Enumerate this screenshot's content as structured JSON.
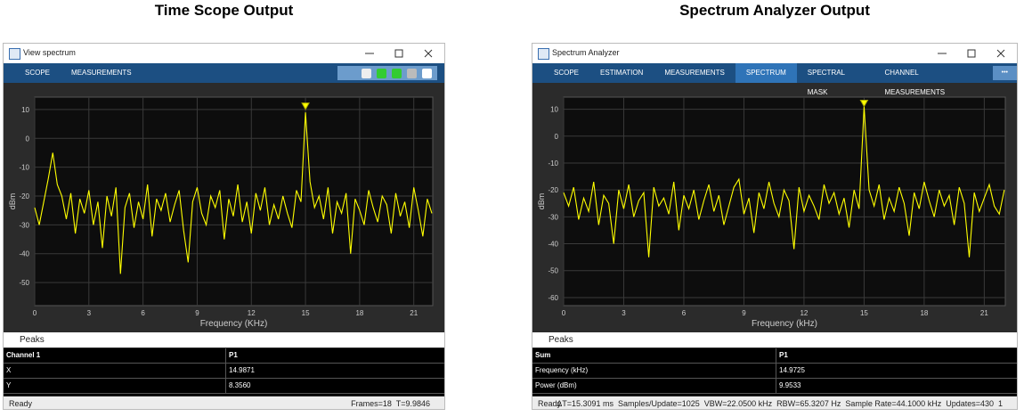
{
  "panels": [
    {
      "heading": "Time Scope Output",
      "window_title": "View spectrum",
      "tabs": [
        "SCOPE",
        "MEASUREMENTS"
      ],
      "peaks_title": "Peaks",
      "table": {
        "header": [
          "Channel 1",
          "P1"
        ],
        "rows": [
          [
            "X",
            "14.9871"
          ],
          [
            "Y",
            "8.3560"
          ]
        ]
      },
      "status": {
        "left": "Ready",
        "right": "Frames=18  T=9.9846"
      }
    },
    {
      "heading": "Spectrum Analyzer Output",
      "window_title": "Spectrum Analyzer",
      "tabs": [
        "SCOPE",
        "ESTIMATION",
        "MEASUREMENTS",
        "SPECTRUM",
        "SPECTRAL MASK",
        "CHANNEL MEASUREMENTS"
      ],
      "active_tab": 3,
      "overflow": "•••",
      "peaks_title": "Peaks",
      "table": {
        "header": [
          "Sum",
          "P1"
        ],
        "rows": [
          [
            "Frequency (kHz)",
            "14.9725"
          ],
          [
            "Power (dBm)",
            "9.9533"
          ]
        ]
      },
      "status": {
        "left": "Ready",
        "right": "ΔT=15.3091 ms  Samples/Update=1025  VBW=22.0500 kHz  RBW=65.3207 Hz  Sample Rate=44.1000 kHz  Updates=430  1"
      }
    }
  ],
  "chart_data": [
    {
      "type": "line",
      "xlabel": "Frequency (KHz)",
      "ylabel": "dBm",
      "x": [
        0,
        0.25,
        0.5,
        0.75,
        1,
        1.25,
        1.5,
        1.75,
        2,
        2.25,
        2.5,
        2.75,
        3,
        3.25,
        3.5,
        3.75,
        4,
        4.25,
        4.5,
        4.75,
        5,
        5.25,
        5.5,
        5.75,
        6,
        6.25,
        6.5,
        6.75,
        7,
        7.25,
        7.5,
        7.75,
        8,
        8.25,
        8.5,
        8.75,
        9,
        9.25,
        9.5,
        9.75,
        10,
        10.25,
        10.5,
        10.75,
        11,
        11.25,
        11.5,
        11.75,
        12,
        12.25,
        12.5,
        12.75,
        13,
        13.25,
        13.5,
        13.75,
        14,
        14.25,
        14.5,
        14.75,
        15,
        15.25,
        15.5,
        15.75,
        16,
        16.25,
        16.5,
        16.75,
        17,
        17.25,
        17.5,
        17.75,
        18,
        18.25,
        18.5,
        18.75,
        19,
        19.25,
        19.5,
        19.75,
        20,
        20.25,
        20.5,
        20.75,
        21,
        21.25,
        21.5,
        21.75,
        22
      ],
      "series": [
        {
          "color": "#ffff00",
          "values": [
            -24,
            -30,
            -22,
            -14,
            -5,
            -16,
            -20,
            -28,
            -19,
            -33,
            -21,
            -26,
            -18,
            -30,
            -22,
            -38,
            -20,
            -27,
            -17,
            -47,
            -24,
            -19,
            -31,
            -22,
            -28,
            -16,
            -34,
            -21,
            -25,
            -19,
            -29,
            -23,
            -18,
            -32,
            -43,
            -22,
            -17,
            -26,
            -30,
            -20,
            -24,
            -18,
            -35,
            -21,
            -27,
            -16,
            -29,
            -22,
            -33,
            -19,
            -25,
            -17,
            -30,
            -23,
            -28,
            -20,
            -26,
            -31,
            -18,
            -22,
            9,
            -15,
            -24,
            -20,
            -28,
            -17,
            -33,
            -22,
            -26,
            -19,
            -40,
            -21,
            -25,
            -30,
            -18,
            -24,
            -29,
            -20,
            -23,
            -33,
            -19,
            -27,
            -22,
            -31,
            -17,
            -25,
            -34,
            -21,
            -26
          ]
        }
      ],
      "xlim": [
        0,
        22.05
      ],
      "ylim": [
        -58,
        14.3
      ],
      "xticks": [
        0,
        3,
        6,
        9,
        12,
        15,
        18,
        21
      ],
      "yticks": [
        10,
        0,
        -10,
        -20,
        -30,
        -40,
        -50
      ],
      "grid": true,
      "peak_marker": {
        "x": 15,
        "y": 11
      }
    },
    {
      "type": "line",
      "xlabel": "Frequency (kHz)",
      "ylabel": "dBm",
      "x": [
        0,
        0.25,
        0.5,
        0.75,
        1,
        1.25,
        1.5,
        1.75,
        2,
        2.25,
        2.5,
        2.75,
        3,
        3.25,
        3.5,
        3.75,
        4,
        4.25,
        4.5,
        4.75,
        5,
        5.25,
        5.5,
        5.75,
        6,
        6.25,
        6.5,
        6.75,
        7,
        7.25,
        7.5,
        7.75,
        8,
        8.25,
        8.5,
        8.75,
        9,
        9.25,
        9.5,
        9.75,
        10,
        10.25,
        10.5,
        10.75,
        11,
        11.25,
        11.5,
        11.75,
        12,
        12.25,
        12.5,
        12.75,
        13,
        13.25,
        13.5,
        13.75,
        14,
        14.25,
        14.5,
        14.75,
        15,
        15.25,
        15.5,
        15.75,
        16,
        16.25,
        16.5,
        16.75,
        17,
        17.25,
        17.5,
        17.75,
        18,
        18.25,
        18.5,
        18.75,
        19,
        19.25,
        19.5,
        19.75,
        20,
        20.25,
        20.5,
        20.75,
        21,
        21.25,
        21.5,
        21.75,
        22
      ],
      "series": [
        {
          "color": "#ffff00",
          "values": [
            -21,
            -26,
            -19,
            -31,
            -23,
            -28,
            -17,
            -33,
            -22,
            -25,
            -40,
            -20,
            -27,
            -18,
            -30,
            -24,
            -21,
            -45,
            -19,
            -26,
            -23,
            -29,
            -17,
            -35,
            -22,
            -27,
            -20,
            -31,
            -24,
            -18,
            -28,
            -22,
            -33,
            -26,
            -19,
            -16,
            -29,
            -23,
            -36,
            -21,
            -27,
            -17,
            -25,
            -30,
            -20,
            -24,
            -42,
            -19,
            -28,
            -22,
            -26,
            -31,
            -18,
            -25,
            -21,
            -29,
            -23,
            -34,
            -20,
            -27,
            11,
            -20,
            -26,
            -18,
            -31,
            -23,
            -28,
            -19,
            -25,
            -37,
            -21,
            -27,
            -17,
            -24,
            -30,
            -20,
            -26,
            -22,
            -33,
            -19,
            -25,
            -45,
            -21,
            -28,
            -23,
            -18,
            -26,
            -29,
            -20
          ]
        }
      ],
      "xlim": [
        0,
        22.05
      ],
      "ylim": [
        -63,
        14.5
      ],
      "xticks": [
        0,
        3,
        6,
        9,
        12,
        15,
        18,
        21
      ],
      "yticks": [
        10,
        0,
        -10,
        -20,
        -30,
        -40,
        -50,
        -60
      ],
      "grid": true,
      "peak_marker": {
        "x": 15,
        "y": 12
      }
    }
  ]
}
